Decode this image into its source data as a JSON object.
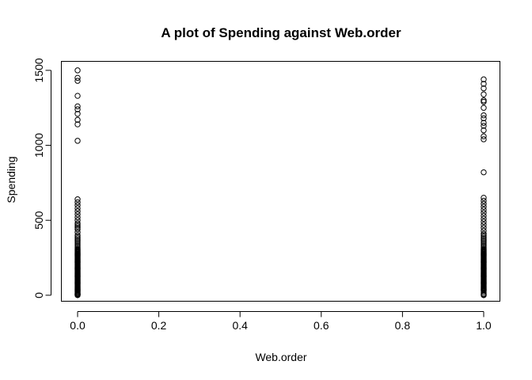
{
  "chart_data": {
    "type": "scatter",
    "title": "A plot of Spending against Web.order",
    "xlabel": "Web.order",
    "ylabel": "Spending",
    "xlim": [
      -0.04,
      1.04
    ],
    "ylim": [
      -40,
      1560
    ],
    "x_ticks": [
      0,
      0.2,
      0.4,
      0.6,
      0.8,
      1
    ],
    "x_tick_labels": [
      "0.0",
      "0.2",
      "0.4",
      "0.6",
      "0.8",
      "1.0"
    ],
    "y_ticks": [
      0,
      500,
      1000,
      1500
    ],
    "y_tick_labels": [
      "0",
      "500",
      "1000",
      "1500"
    ],
    "grid": false,
    "series": [
      {
        "x": [
          0,
          0,
          0,
          0,
          0,
          0,
          0,
          0,
          0,
          0,
          0,
          0,
          0,
          0,
          0,
          0,
          0,
          0,
          0,
          0,
          0,
          0,
          0,
          0,
          0,
          0,
          0,
          0,
          0,
          0,
          0,
          0,
          0,
          0,
          0,
          0,
          0,
          0,
          0,
          0,
          0,
          0,
          0,
          0,
          0,
          0,
          0,
          0,
          0,
          0,
          0,
          0,
          0,
          0,
          0,
          0,
          0,
          0,
          0,
          0,
          0,
          0,
          0,
          0,
          0,
          0,
          0,
          0,
          0,
          0,
          0,
          0,
          0,
          0,
          0,
          0,
          0,
          0,
          0,
          0,
          0,
          0,
          0,
          0,
          0,
          0,
          0,
          0,
          0,
          0,
          0,
          0,
          0,
          0,
          0,
          0,
          0,
          0
        ],
        "y": [
          1500,
          1450,
          1430,
          1330,
          1260,
          1240,
          1210,
          1170,
          1140,
          1030,
          640,
          620,
          600,
          580,
          560,
          540,
          520,
          500,
          480,
          460,
          440,
          420,
          400,
          390,
          380,
          370,
          360,
          350,
          340,
          330,
          320,
          310,
          300,
          290,
          280,
          270,
          260,
          250,
          240,
          230,
          220,
          210,
          200,
          190,
          180,
          170,
          160,
          150,
          140,
          130,
          120,
          110,
          100,
          90,
          80,
          70,
          60,
          50,
          40,
          30,
          20,
          10,
          5,
          0,
          305,
          295,
          285,
          275,
          265,
          255,
          245,
          235,
          225,
          215,
          205,
          195,
          185,
          175,
          165,
          155,
          145,
          135,
          125,
          115,
          105,
          95,
          85,
          75,
          65,
          55,
          45,
          35,
          25,
          15,
          8,
          3,
          450,
          470
        ]
      },
      {
        "x": [
          1,
          1,
          1,
          1,
          1,
          1,
          1,
          1,
          1,
          1,
          1,
          1,
          1,
          1,
          1,
          1,
          1,
          1,
          1,
          1,
          1,
          1,
          1,
          1,
          1,
          1,
          1,
          1,
          1,
          1,
          1,
          1,
          1,
          1,
          1,
          1,
          1,
          1,
          1,
          1,
          1,
          1,
          1,
          1,
          1,
          1,
          1,
          1,
          1,
          1,
          1,
          1,
          1,
          1,
          1,
          1,
          1,
          1,
          1,
          1,
          1,
          1,
          1,
          1,
          1,
          1,
          1,
          1,
          1,
          1,
          1,
          1,
          1,
          1,
          1,
          1,
          1,
          1,
          1,
          1,
          1,
          1,
          1,
          1,
          1,
          1,
          1,
          1,
          1,
          1,
          1,
          1,
          1,
          1,
          1,
          1,
          1,
          1
        ],
        "y": [
          1440,
          1410,
          1380,
          1340,
          1300,
          1290,
          1250,
          1200,
          1180,
          1150,
          1130,
          1100,
          1060,
          1040,
          820,
          650,
          630,
          610,
          590,
          570,
          550,
          530,
          510,
          490,
          470,
          450,
          430,
          410,
          400,
          390,
          380,
          370,
          360,
          350,
          340,
          330,
          320,
          310,
          300,
          290,
          280,
          270,
          260,
          250,
          240,
          230,
          220,
          210,
          200,
          190,
          180,
          170,
          160,
          150,
          140,
          130,
          120,
          110,
          100,
          90,
          80,
          70,
          60,
          50,
          40,
          30,
          20,
          10,
          5,
          0,
          305,
          295,
          285,
          275,
          265,
          255,
          245,
          235,
          225,
          215,
          205,
          195,
          185,
          175,
          165,
          155,
          145,
          135,
          125,
          115,
          105,
          95,
          85,
          75,
          65,
          55,
          45,
          35
        ]
      }
    ]
  }
}
